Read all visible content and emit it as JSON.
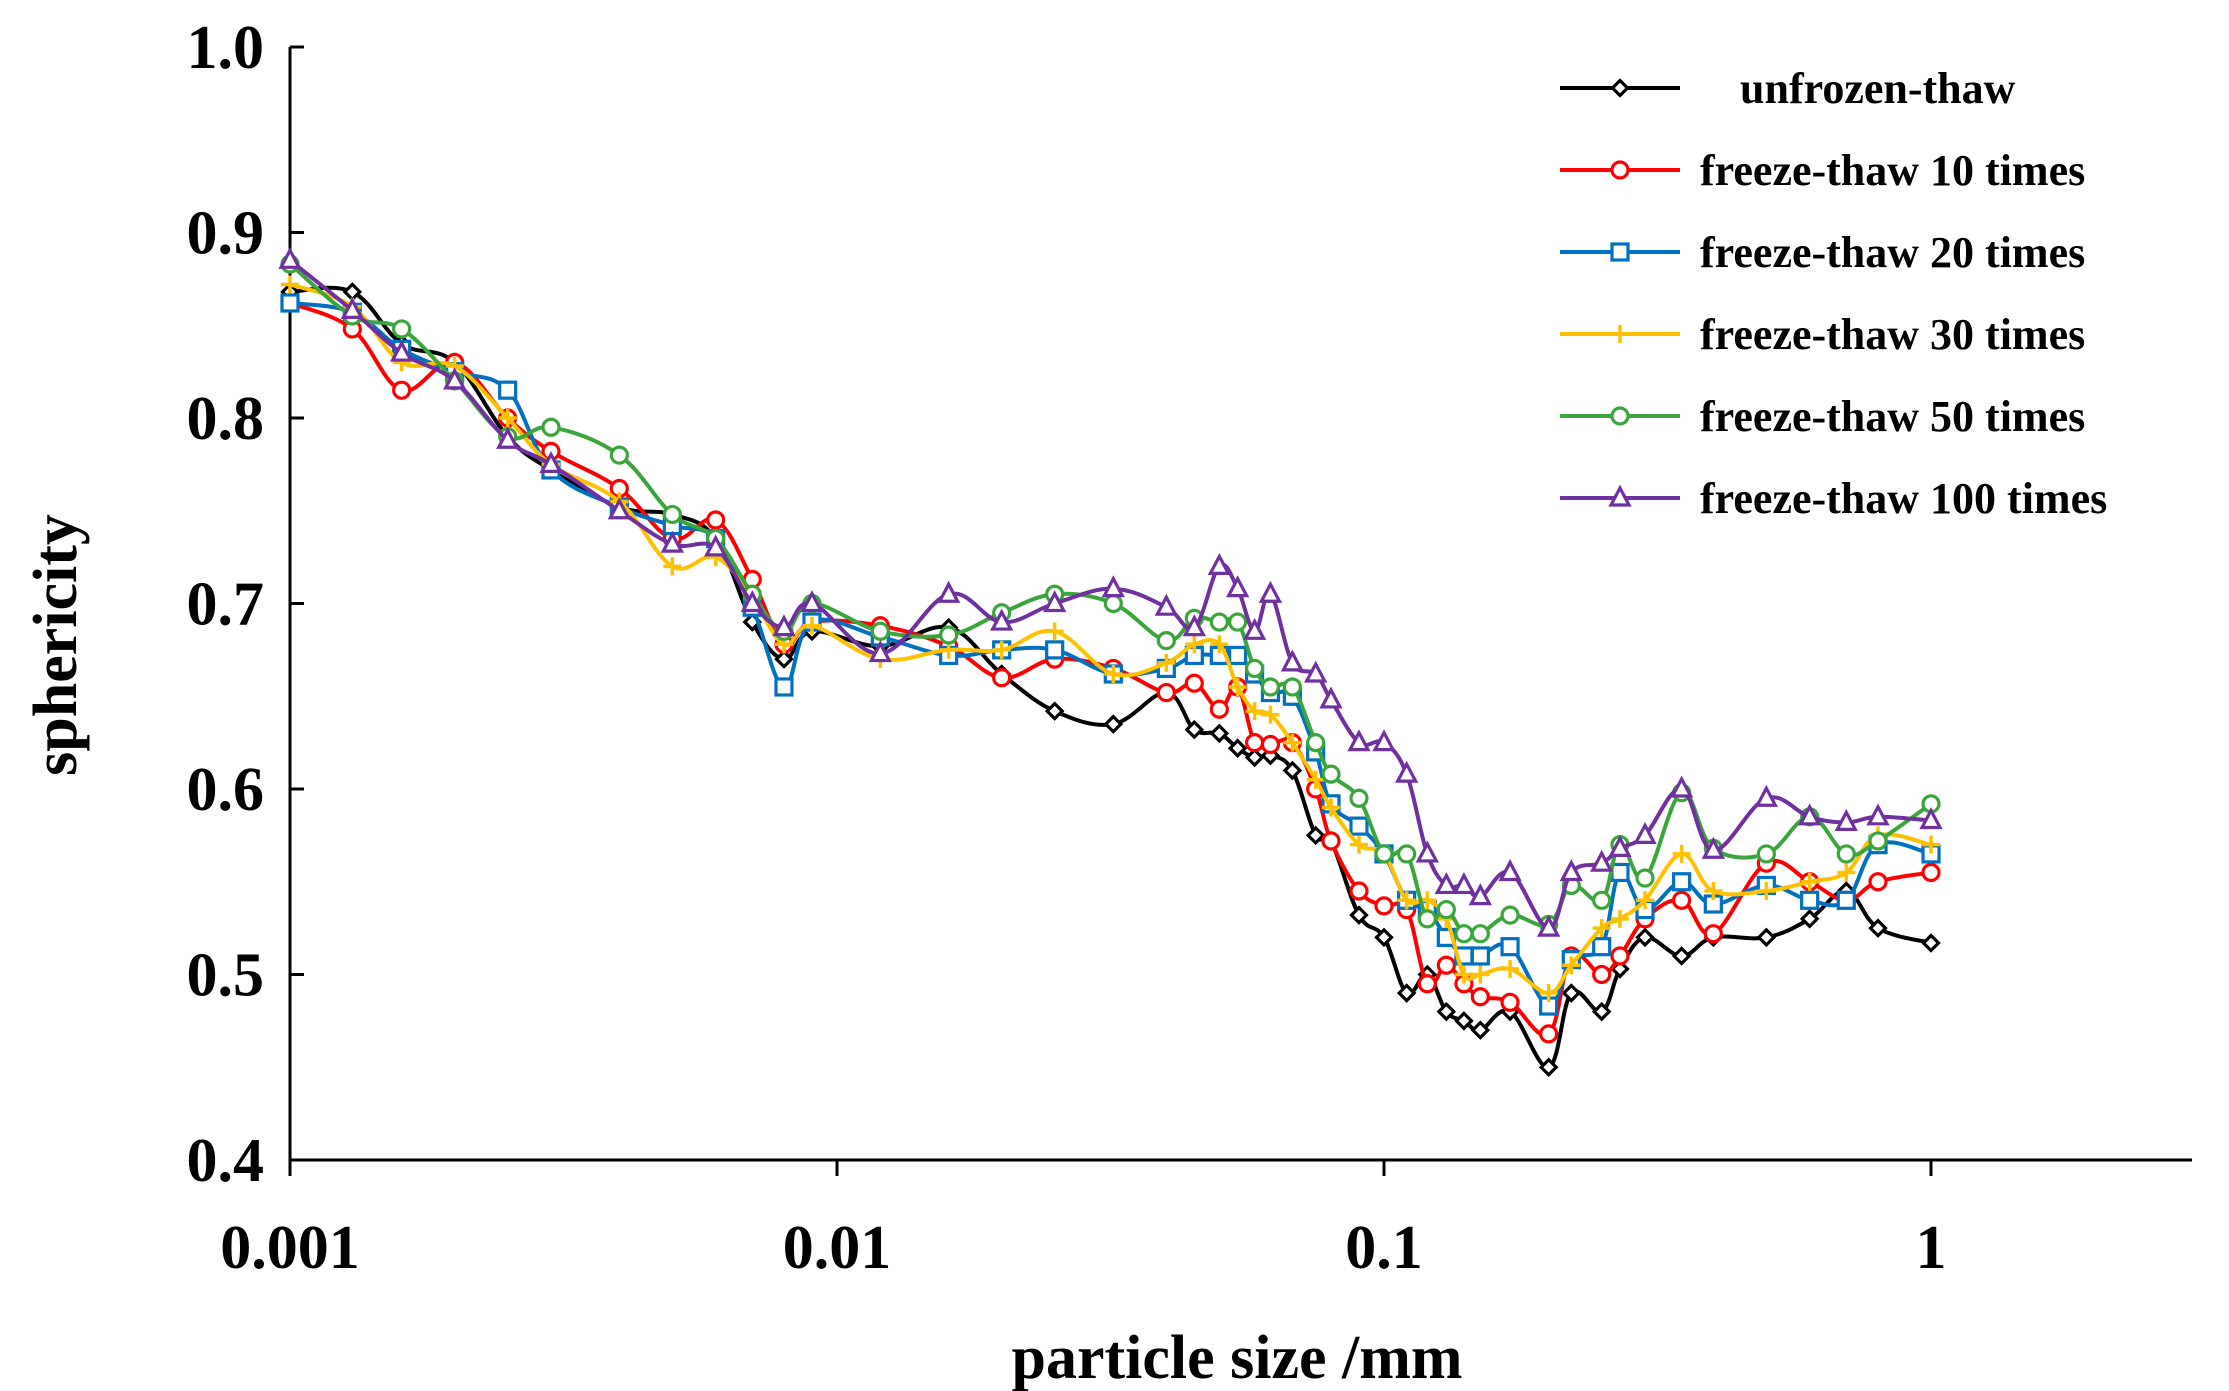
{
  "chart_data": {
    "type": "line",
    "title": "",
    "xlabel": "particle size /mm",
    "ylabel": "sphericity",
    "xscale": "log",
    "xlim": [
      0.001,
      3
    ],
    "ylim": [
      0.4,
      1.0
    ],
    "xticks": [
      0.001,
      0.01,
      0.1,
      1
    ],
    "xtick_labels": [
      "0.001",
      "0.01",
      "0.1",
      "1"
    ],
    "yticks": [
      0.4,
      0.5,
      0.6,
      0.7,
      0.8,
      0.9,
      1.0
    ],
    "ytick_labels": [
      "0.4",
      "0.5",
      "0.6",
      "0.7",
      "0.8",
      "0.9",
      "1.0"
    ],
    "legend_position": "top-right",
    "grid": false,
    "series": [
      {
        "name": "unfrozen-thaw",
        "color": "#000000",
        "marker": "diamond",
        "x": [
          0.001,
          0.0013,
          0.0016,
          0.002,
          0.0025,
          0.003,
          0.004,
          0.005,
          0.006,
          0.007,
          0.008,
          0.009,
          0.012,
          0.016,
          0.02,
          0.025,
          0.032,
          0.04,
          0.045,
          0.05,
          0.054,
          0.058,
          0.062,
          0.068,
          0.075,
          0.08,
          0.09,
          0.1,
          0.11,
          0.12,
          0.13,
          0.14,
          0.15,
          0.17,
          0.2,
          0.22,
          0.25,
          0.27,
          0.3,
          0.35,
          0.4,
          0.5,
          0.6,
          0.7,
          0.8,
          1.0
        ],
        "y": [
          0.868,
          0.868,
          0.84,
          0.83,
          0.79,
          0.772,
          0.752,
          0.748,
          0.735,
          0.69,
          0.67,
          0.685,
          0.677,
          0.687,
          0.662,
          0.642,
          0.635,
          0.652,
          0.632,
          0.63,
          0.622,
          0.617,
          0.618,
          0.61,
          0.575,
          0.572,
          0.532,
          0.52,
          0.49,
          0.5,
          0.48,
          0.475,
          0.47,
          0.48,
          0.45,
          0.49,
          0.48,
          0.503,
          0.52,
          0.51,
          0.52,
          0.52,
          0.53,
          0.545,
          0.525,
          0.517
        ]
      },
      {
        "name": "freeze-thaw 10 times",
        "color": "#ff0000",
        "marker": "circle",
        "x": [
          0.001,
          0.0013,
          0.0016,
          0.002,
          0.0025,
          0.003,
          0.004,
          0.005,
          0.006,
          0.007,
          0.008,
          0.009,
          0.012,
          0.016,
          0.02,
          0.025,
          0.032,
          0.04,
          0.045,
          0.05,
          0.054,
          0.058,
          0.062,
          0.068,
          0.075,
          0.08,
          0.09,
          0.1,
          0.11,
          0.12,
          0.13,
          0.14,
          0.15,
          0.17,
          0.2,
          0.22,
          0.25,
          0.27,
          0.3,
          0.35,
          0.4,
          0.5,
          0.6,
          0.7,
          0.8,
          1.0
        ],
        "y": [
          0.862,
          0.848,
          0.815,
          0.83,
          0.8,
          0.782,
          0.762,
          0.735,
          0.745,
          0.713,
          0.678,
          0.69,
          0.688,
          0.677,
          0.66,
          0.67,
          0.665,
          0.652,
          0.657,
          0.643,
          0.655,
          0.625,
          0.624,
          0.625,
          0.6,
          0.572,
          0.545,
          0.537,
          0.535,
          0.495,
          0.505,
          0.495,
          0.488,
          0.485,
          0.468,
          0.51,
          0.5,
          0.51,
          0.53,
          0.54,
          0.522,
          0.56,
          0.55,
          0.54,
          0.55,
          0.555
        ]
      },
      {
        "name": "freeze-thaw 20 times",
        "color": "#0070c0",
        "marker": "square",
        "x": [
          0.001,
          0.0013,
          0.0016,
          0.002,
          0.0025,
          0.003,
          0.004,
          0.005,
          0.006,
          0.007,
          0.008,
          0.009,
          0.012,
          0.016,
          0.02,
          0.025,
          0.032,
          0.04,
          0.045,
          0.05,
          0.054,
          0.058,
          0.062,
          0.068,
          0.075,
          0.08,
          0.09,
          0.1,
          0.11,
          0.12,
          0.13,
          0.14,
          0.15,
          0.17,
          0.2,
          0.22,
          0.25,
          0.27,
          0.3,
          0.35,
          0.4,
          0.5,
          0.6,
          0.7,
          0.8,
          1.0
        ],
        "y": [
          0.862,
          0.857,
          0.837,
          0.825,
          0.815,
          0.772,
          0.752,
          0.742,
          0.735,
          0.698,
          0.655,
          0.69,
          0.682,
          0.672,
          0.675,
          0.675,
          0.662,
          0.665,
          0.672,
          0.672,
          0.672,
          0.662,
          0.652,
          0.65,
          0.62,
          0.592,
          0.58,
          0.565,
          0.54,
          0.535,
          0.52,
          0.51,
          0.51,
          0.515,
          0.483,
          0.508,
          0.515,
          0.555,
          0.535,
          0.55,
          0.538,
          0.548,
          0.54,
          0.54,
          0.57,
          0.565
        ]
      },
      {
        "name": "freeze-thaw 30 times",
        "color": "#ffc000",
        "marker": "plus",
        "x": [
          0.001,
          0.0013,
          0.0016,
          0.002,
          0.0025,
          0.003,
          0.004,
          0.005,
          0.006,
          0.007,
          0.008,
          0.009,
          0.012,
          0.016,
          0.02,
          0.025,
          0.032,
          0.04,
          0.045,
          0.05,
          0.054,
          0.058,
          0.062,
          0.068,
          0.075,
          0.08,
          0.09,
          0.1,
          0.11,
          0.12,
          0.13,
          0.14,
          0.15,
          0.17,
          0.2,
          0.22,
          0.25,
          0.27,
          0.3,
          0.35,
          0.4,
          0.5,
          0.6,
          0.7,
          0.8,
          1.0
        ],
        "y": [
          0.872,
          0.86,
          0.83,
          0.828,
          0.8,
          0.775,
          0.755,
          0.72,
          0.725,
          0.703,
          0.678,
          0.688,
          0.67,
          0.675,
          0.675,
          0.685,
          0.662,
          0.668,
          0.678,
          0.678,
          0.655,
          0.642,
          0.64,
          0.625,
          0.605,
          0.59,
          0.57,
          0.565,
          0.54,
          0.54,
          0.53,
          0.5,
          0.5,
          0.503,
          0.49,
          0.505,
          0.525,
          0.53,
          0.54,
          0.565,
          0.545,
          0.545,
          0.55,
          0.555,
          0.575,
          0.57
        ]
      },
      {
        "name": "freeze-thaw 50 times",
        "color": "#3aa53a",
        "marker": "circle",
        "x": [
          0.001,
          0.0013,
          0.0016,
          0.002,
          0.0025,
          0.003,
          0.004,
          0.005,
          0.006,
          0.007,
          0.008,
          0.009,
          0.012,
          0.016,
          0.02,
          0.025,
          0.032,
          0.04,
          0.045,
          0.05,
          0.054,
          0.058,
          0.062,
          0.068,
          0.075,
          0.08,
          0.09,
          0.1,
          0.11,
          0.12,
          0.13,
          0.14,
          0.15,
          0.17,
          0.2,
          0.22,
          0.25,
          0.27,
          0.3,
          0.35,
          0.4,
          0.5,
          0.6,
          0.7,
          0.8,
          1.0
        ],
        "y": [
          0.883,
          0.855,
          0.848,
          0.82,
          0.79,
          0.795,
          0.78,
          0.748,
          0.735,
          0.705,
          0.685,
          0.7,
          0.685,
          0.683,
          0.695,
          0.705,
          0.7,
          0.68,
          0.692,
          0.69,
          0.69,
          0.665,
          0.655,
          0.655,
          0.625,
          0.608,
          0.595,
          0.565,
          0.565,
          0.53,
          0.535,
          0.522,
          0.522,
          0.532,
          0.527,
          0.548,
          0.54,
          0.57,
          0.552,
          0.598,
          0.568,
          0.565,
          0.585,
          0.565,
          0.572,
          0.592
        ]
      },
      {
        "name": "freeze-thaw 100 times",
        "color": "#7030a0",
        "marker": "triangle",
        "x": [
          0.001,
          0.0013,
          0.0016,
          0.002,
          0.0025,
          0.003,
          0.004,
          0.005,
          0.006,
          0.007,
          0.008,
          0.009,
          0.012,
          0.016,
          0.02,
          0.025,
          0.032,
          0.04,
          0.045,
          0.05,
          0.054,
          0.058,
          0.062,
          0.068,
          0.075,
          0.08,
          0.09,
          0.1,
          0.11,
          0.12,
          0.13,
          0.14,
          0.15,
          0.17,
          0.2,
          0.22,
          0.25,
          0.27,
          0.3,
          0.35,
          0.4,
          0.5,
          0.6,
          0.7,
          0.8,
          1.0
        ],
        "y": [
          0.885,
          0.858,
          0.835,
          0.82,
          0.788,
          0.775,
          0.75,
          0.732,
          0.73,
          0.7,
          0.687,
          0.7,
          0.673,
          0.705,
          0.69,
          0.7,
          0.708,
          0.698,
          0.687,
          0.72,
          0.708,
          0.685,
          0.705,
          0.668,
          0.662,
          0.648,
          0.625,
          0.625,
          0.608,
          0.565,
          0.548,
          0.548,
          0.542,
          0.555,
          0.525,
          0.555,
          0.56,
          0.568,
          0.575,
          0.6,
          0.567,
          0.595,
          0.585,
          0.582,
          0.585,
          0.583
        ]
      }
    ]
  }
}
